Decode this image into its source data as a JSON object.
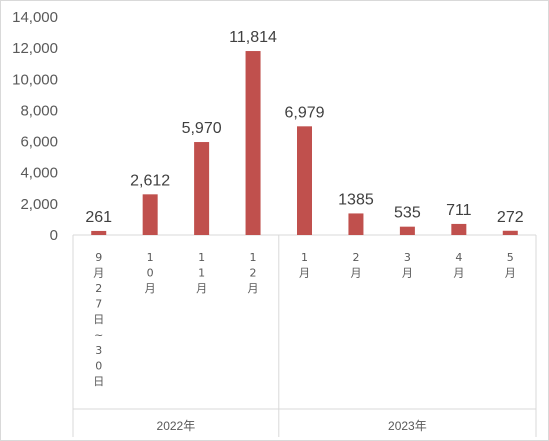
{
  "chart_data": {
    "type": "bar",
    "categories": [
      "9月27日~30日",
      "10月",
      "11月",
      "12月",
      "1月",
      "2月",
      "3月",
      "4月",
      "5月"
    ],
    "values": [
      261,
      2612,
      5970,
      11814,
      6979,
      1385,
      535,
      711,
      272
    ],
    "data_labels": [
      "261",
      "2,612",
      "5,970",
      "11,814",
      "6,979",
      "1385",
      "535",
      "711",
      "272"
    ],
    "groups": [
      {
        "label": "2022年",
        "start": 0,
        "end": 3
      },
      {
        "label": "2023年",
        "start": 4,
        "end": 8
      }
    ],
    "ylim": [
      0,
      14000
    ],
    "yticks": [
      0,
      2000,
      4000,
      6000,
      8000,
      10000,
      12000,
      14000
    ],
    "ytick_labels": [
      "0",
      "2,000",
      "4,000",
      "6,000",
      "8,000",
      "10,000",
      "12,000",
      "14,000"
    ],
    "title": "",
    "xlabel": "",
    "ylabel": "",
    "grid": false,
    "legend": "none",
    "colors": {
      "bar": "#c0504d",
      "axis": "#d9d9d9",
      "text": "#595959"
    }
  }
}
